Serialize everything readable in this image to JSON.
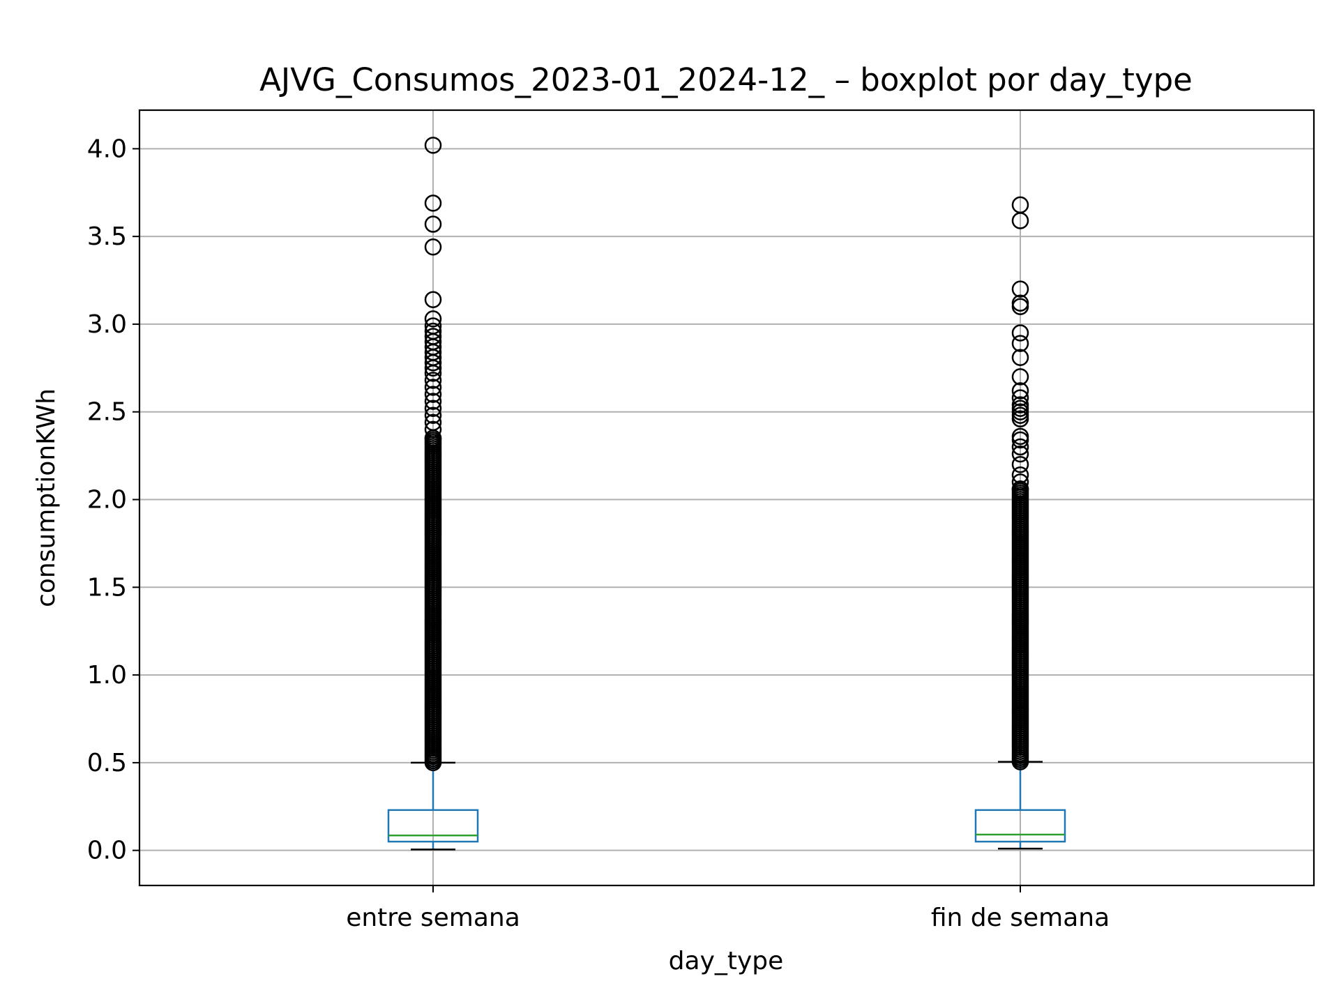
{
  "chart_data": {
    "type": "boxplot",
    "title": "AJVG_Consumos_2023-01_2024-12_ – boxplot por day_type",
    "xlabel": "day_type",
    "ylabel": "consumptionKWh",
    "categories": [
      "entre semana",
      "fin de semana"
    ],
    "ylim": [
      -0.2,
      4.22
    ],
    "yticks": [
      0.0,
      0.5,
      1.0,
      1.5,
      2.0,
      2.5,
      3.0,
      3.5,
      4.0
    ],
    "ytick_labels": [
      "0.0",
      "0.5",
      "1.0",
      "1.5",
      "2.0",
      "2.5",
      "3.0",
      "3.5",
      "4.0"
    ],
    "grid": true,
    "colors": {
      "box": "#1f77b4",
      "median": "#2ca02c",
      "whisker": "#1f77b4",
      "caps": "#000000",
      "fliers": "#000000",
      "grid": "#b0b0b0"
    },
    "boxes": [
      {
        "category": "entre semana",
        "whislo": 0.005,
        "q1": 0.05,
        "med": 0.085,
        "q3": 0.23,
        "whishi": 0.5,
        "fliers": [
          4.02,
          3.69,
          3.57,
          3.44,
          3.14,
          3.03,
          2.99,
          2.96,
          2.93,
          2.9,
          2.87,
          2.84,
          2.81,
          2.78,
          2.75,
          2.72,
          2.68,
          2.64,
          2.6,
          2.56,
          2.52,
          2.48,
          2.44,
          2.4,
          2.35
        ],
        "flier_band": [
          0.5,
          2.35
        ]
      },
      {
        "category": "fin de semana",
        "whislo": 0.01,
        "q1": 0.05,
        "med": 0.09,
        "q3": 0.23,
        "whishi": 0.505,
        "fliers": [
          3.68,
          3.59,
          3.2,
          3.12,
          3.1,
          2.95,
          2.89,
          2.81,
          2.7,
          2.62,
          2.58,
          2.54,
          2.52,
          2.5,
          2.48,
          2.46,
          2.36,
          2.34,
          2.3,
          2.26,
          2.2,
          2.14,
          2.1,
          2.06
        ],
        "flier_band": [
          0.505,
          2.06
        ]
      }
    ]
  }
}
